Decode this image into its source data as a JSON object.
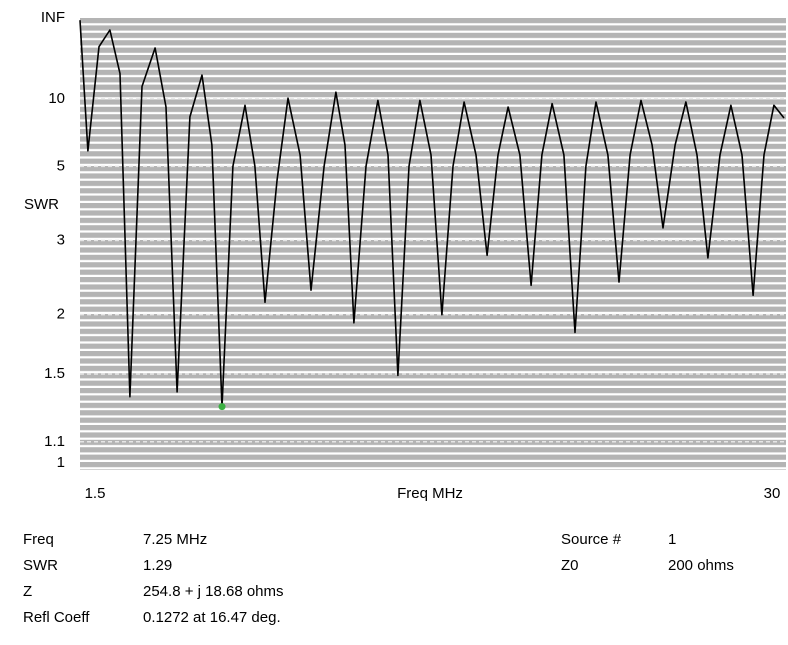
{
  "chart_data": {
    "type": "line",
    "y_label": "SWR",
    "x_label": "Freq MHz",
    "x": [
      1.5,
      1.82,
      2.27,
      2.71,
      3.12,
      3.52,
      4.01,
      4.54,
      4.98,
      5.43,
      5.95,
      6.44,
      6.84,
      7.25,
      7.69,
      8.18,
      8.58,
      8.99,
      9.48,
      9.92,
      10.41,
      10.85,
      11.38,
      11.86,
      12.23,
      12.59,
      13.08,
      13.56,
      13.97,
      14.37,
      14.82,
      15.26,
      15.71,
      16.15,
      16.6,
      17.05,
      17.53,
      17.98,
      18.42,
      18.83,
      19.31,
      19.76,
      20.2,
      20.61,
      21.09,
      21.54,
      21.98,
      22.39,
      22.87,
      23.32,
      23.77,
      24.21,
      24.66,
      25.1,
      25.59,
      26.03,
      26.48,
      26.92,
      27.41,
      27.85,
      28.3,
      28.75,
      29.19,
      29.59,
      30.0
    ],
    "series": [
      {
        "color": "#000000",
        "values": [
          400,
          5.7,
          30,
          73,
          15,
          1.35,
          12,
          28.7,
          9,
          1.38,
          8,
          14.6,
          6,
          1.29,
          5,
          9.2,
          5,
          2.13,
          4.5,
          10.1,
          5.5,
          2.27,
          5,
          11.0,
          6,
          1.92,
          5,
          9.8,
          5.5,
          1.49,
          5,
          9.8,
          5.5,
          2.0,
          5,
          9.6,
          5.5,
          2.75,
          5.5,
          9.0,
          5.5,
          2.33,
          5.5,
          9.4,
          5.5,
          1.83,
          5,
          9.6,
          5.5,
          2.37,
          5.5,
          9.8,
          6,
          3.24,
          6,
          9.6,
          5.5,
          2.71,
          5.5,
          9.2,
          5.5,
          2.21,
          5.5,
          9.2,
          7.9
        ]
      }
    ],
    "xlim": [
      1.5,
      30
    ],
    "xticks": [
      1.5,
      30
    ],
    "ylim": [
      1,
      null
    ],
    "yscale": "swr",
    "yticks": [
      {
        "value": null,
        "label": "INF"
      },
      10,
      5,
      3,
      2,
      1.5,
      1.1,
      1
    ],
    "grid": true,
    "marker": {
      "x": 7.25,
      "y": 1.29,
      "color": "#3cb043"
    }
  },
  "readout": {
    "left": [
      [
        "Freq",
        "7.25 MHz"
      ],
      [
        "SWR",
        "1.29"
      ],
      [
        "Z",
        "254.8 + j 18.68 ohms"
      ],
      [
        "Refl Coeff",
        "0.1272 at 16.47 deg."
      ]
    ],
    "right": [
      [
        "Source #",
        "1"
      ],
      [
        "Z0",
        "200 ohms"
      ]
    ]
  }
}
